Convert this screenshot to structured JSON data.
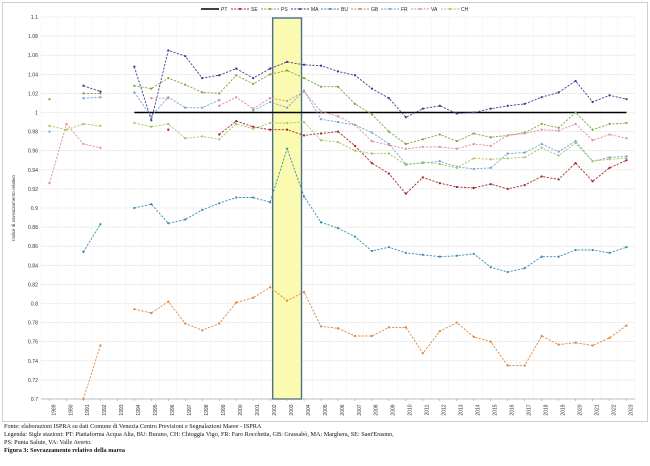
{
  "chart_data": {
    "type": "line",
    "title": "",
    "ylabel": "Indice di sovrazzamento relativo",
    "xlabel": "",
    "ylim": [
      0.7,
      1.1
    ],
    "yticks": [
      "0.7",
      "0.72",
      "0.74",
      "0.76",
      "0.78",
      "0.8",
      "0.82",
      "0.84",
      "0.86",
      "0.88",
      "0.9",
      "0.92",
      "0.94",
      "0.96",
      "0.98",
      "1",
      "1.02",
      "1.04",
      "1.06",
      "1.08",
      "1.1"
    ],
    "x": [
      "1989",
      "1990",
      "1991",
      "1992",
      "1993",
      "1994",
      "1995",
      "1996",
      "1997",
      "1998",
      "1999",
      "2000",
      "2001",
      "2002",
      "2003",
      "2004",
      "2005",
      "2006",
      "2007",
      "2008",
      "2009",
      "2010",
      "2011",
      "2012",
      "2013",
      "2014",
      "2015",
      "2016",
      "2017",
      "2018",
      "2019",
      "2020",
      "2021",
      "2022",
      "2023"
    ],
    "highlight": {
      "from": "2002",
      "to": "2004",
      "fill": "#fafab0",
      "stroke": "#4a6f8f"
    },
    "legend_position": "top",
    "grid": true,
    "series": [
      {
        "name": "PT",
        "color": "#000000",
        "dashed": false,
        "values": [
          null,
          null,
          null,
          null,
          null,
          1,
          1,
          1,
          1,
          1,
          1,
          1,
          1,
          1,
          1,
          1,
          1,
          1,
          1,
          1,
          1,
          1,
          1,
          1,
          1,
          1,
          1,
          1,
          1,
          1,
          1,
          1,
          1,
          1,
          1
        ]
      },
      {
        "name": "SE",
        "color": "#a52a2a",
        "dashed": true,
        "values": [
          null,
          null,
          null,
          null,
          null,
          null,
          null,
          0.982,
          null,
          null,
          0.977,
          0.991,
          0.985,
          0.982,
          0.982,
          0.976,
          0.978,
          0.98,
          0.965,
          0.947,
          0.936,
          0.915,
          0.932,
          0.926,
          0.922,
          0.921,
          0.925,
          0.92,
          0.924,
          0.933,
          0.93,
          0.947,
          0.928,
          0.942,
          0.95
        ]
      },
      {
        "name": "PS",
        "color": "#7daa3a",
        "dashed": true,
        "values": [
          1.014,
          null,
          1.02,
          1.02,
          null,
          1.028,
          1.025,
          1.036,
          1.029,
          1.021,
          1.02,
          1.039,
          1.03,
          1.04,
          1.044,
          1.036,
          1.027,
          1.027,
          1.009,
          0.998,
          0.98,
          0.967,
          0.972,
          0.977,
          0.97,
          0.978,
          0.974,
          0.976,
          0.979,
          0.988,
          0.984,
          1,
          0.982,
          0.988,
          0.989
        ]
      },
      {
        "name": "MA",
        "color": "#4a3a8f",
        "dashed": true,
        "values": [
          null,
          null,
          1.028,
          1.022,
          null,
          1.048,
          0.992,
          1.065,
          1.059,
          1.036,
          1.039,
          1.046,
          1.036,
          1.046,
          1.053,
          1.05,
          1.049,
          1.043,
          1.039,
          1.025,
          1.015,
          0.995,
          1.004,
          1.007,
          0.999,
          1,
          1.004,
          1.007,
          1.009,
          1.016,
          1.021,
          1.033,
          1.011,
          1.018,
          1.014
        ]
      },
      {
        "name": "BU",
        "color": "#3a8fb0",
        "dashed": true,
        "values": [
          null,
          null,
          0.854,
          0.883,
          null,
          0.9,
          0.904,
          0.884,
          0.888,
          0.898,
          0.905,
          0.911,
          0.911,
          0.906,
          0.962,
          0.912,
          0.885,
          0.879,
          0.87,
          0.855,
          0.859,
          0.853,
          0.851,
          0.849,
          0.85,
          0.852,
          0.838,
          0.833,
          0.837,
          0.849,
          0.849,
          0.856,
          0.856,
          0.853,
          0.859
        ]
      },
      {
        "name": "GB",
        "color": "#e2873a",
        "dashed": true,
        "values": [
          null,
          null,
          0.7,
          0.756,
          null,
          0.794,
          0.79,
          0.802,
          0.779,
          0.772,
          0.779,
          0.801,
          0.806,
          0.817,
          0.803,
          0.812,
          0.776,
          0.774,
          0.766,
          0.766,
          0.775,
          0.775,
          0.748,
          0.771,
          0.78,
          0.765,
          0.76,
          0.735,
          0.735,
          0.766,
          0.757,
          0.759,
          0.756,
          0.764,
          0.777
        ]
      },
      {
        "name": "FR",
        "color": "#7aa4d6",
        "dashed": true,
        "values": [
          0.98,
          null,
          1.015,
          1.016,
          null,
          1.021,
          0.996,
          1.016,
          1.005,
          1.005,
          1.013,
          null,
          1.002,
          1.011,
          1.005,
          1.023,
          0.993,
          0.99,
          0.987,
          0.979,
          0.967,
          0.946,
          0.947,
          0.949,
          0.943,
          0.941,
          0.942,
          0.957,
          0.958,
          0.967,
          0.959,
          0.97,
          0.949,
          0.953,
          0.954
        ]
      },
      {
        "name": "VA",
        "color": "#e08fa0",
        "dashed": true,
        "values": [
          0.926,
          0.988,
          0.967,
          0.963,
          null,
          null,
          1.015,
          1.015,
          null,
          null,
          1.007,
          1.016,
          1.004,
          1.015,
          1.012,
          1.022,
          1.001,
          0.996,
          0.987,
          0.97,
          0.966,
          0.962,
          0.964,
          0.964,
          0.962,
          0.967,
          0.965,
          0.976,
          0.978,
          0.982,
          0.981,
          0.988,
          0.971,
          0.977,
          0.973
        ]
      },
      {
        "name": "CH",
        "color": "#a8c860",
        "dashed": true,
        "values": [
          0.986,
          0.982,
          0.988,
          0.986,
          null,
          0.989,
          0.985,
          0.988,
          0.973,
          0.975,
          0.972,
          0.988,
          0.983,
          0.989,
          0.989,
          0.99,
          0.971,
          0.969,
          0.96,
          0.957,
          0.957,
          0.945,
          0.948,
          0.946,
          0.942,
          0.952,
          0.951,
          0.952,
          0.953,
          0.963,
          0.955,
          0.968,
          0.949,
          0.951,
          0.952
        ]
      }
    ]
  },
  "captions": {
    "source": "Fonte: elaborazioni ISPRA su dati Comune di Venezia Centro Previsioni e Segnalazioni Maree - ISPRA",
    "legend_line1": "Legenda: Sigle stazioni: PT: Piattaforma Acqua Alta, BU: Burano, CH: Chioggia Vigo, FR: Faro Rocchetta, GB: Grassabò, MA: Marghera, SE: Sant'Erasmo,",
    "legend_line2": "PS: Punta Salute, VA: Valle Averto.",
    "figure": "Figura 3: Sovrazzamento relativo della marea"
  }
}
